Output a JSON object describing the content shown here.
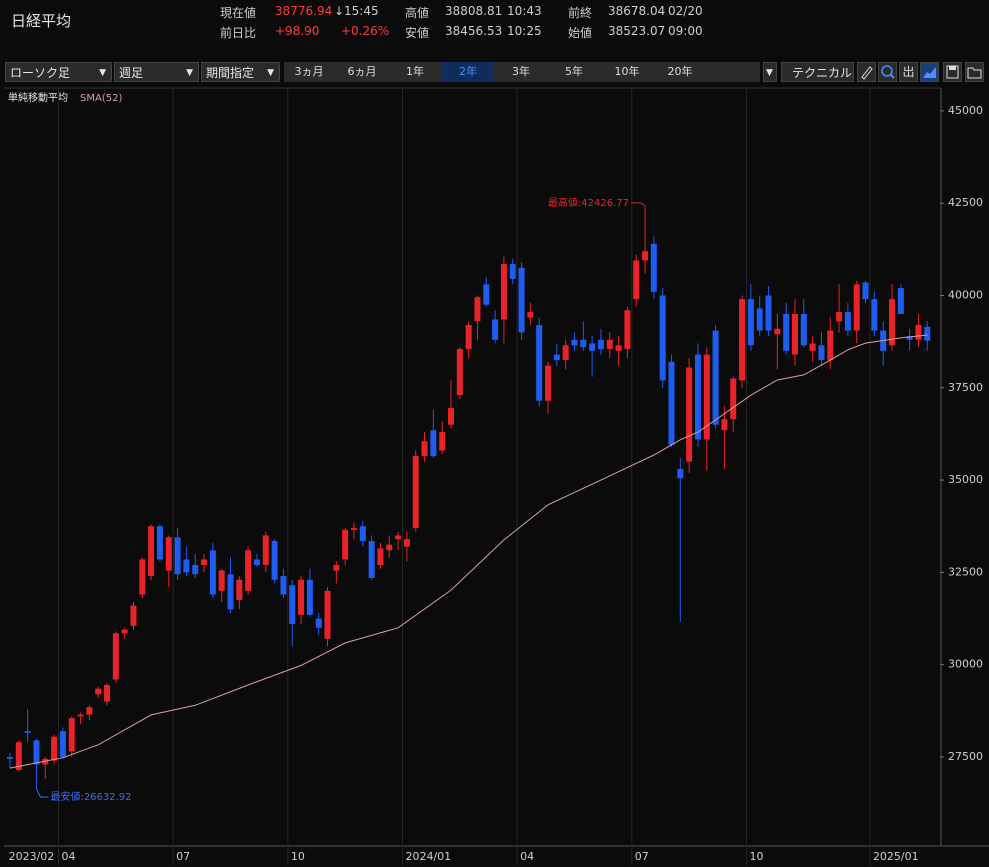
{
  "header": {
    "title": "日経平均",
    "cells": [
      "現在値",
      "38776.94",
      "↓",
      "15:45",
      "高値",
      "38808.81",
      "10:43",
      "前終",
      "38678.04",
      "02/20",
      "前日比",
      "+98.90",
      "+0.26%",
      "安値",
      "38456.53",
      "10:25",
      "始値",
      "38523.07",
      "09:00"
    ]
  },
  "toolbar": {
    "dropdowns": [
      "ローソク足",
      "週足",
      "期間指定"
    ],
    "periods": [
      "3ヵ月",
      "6ヵ月",
      "1年",
      "2年",
      "3年",
      "5年",
      "10年",
      "20年"
    ],
    "selected_period": "2年",
    "technical": "テクニカル",
    "icon_label": "出"
  },
  "chart_data": {
    "type": "candlestick",
    "indicator_label": "単純移動平均",
    "up_color": "#e8232a",
    "down_color": "#1f5cf0",
    "categories": [
      "2023/02",
      null,
      null,
      null,
      null,
      null,
      "04",
      null,
      null,
      null,
      null,
      null,
      null,
      null,
      null,
      null,
      null,
      null,
      null,
      "07",
      null,
      null,
      null,
      null,
      null,
      null,
      null,
      null,
      null,
      null,
      null,
      null,
      "10",
      null,
      null,
      null,
      null,
      null,
      null,
      null,
      null,
      null,
      null,
      null,
      null,
      "2024/01",
      null,
      null,
      null,
      null,
      null,
      null,
      null,
      null,
      null,
      null,
      null,
      null,
      "04",
      null,
      null,
      null,
      null,
      null,
      null,
      null,
      null,
      null,
      null,
      null,
      null,
      "07",
      null,
      null,
      null,
      null,
      null,
      null,
      null,
      null,
      null,
      null,
      null,
      null,
      "10",
      null,
      null,
      null,
      null,
      null,
      null,
      null,
      null,
      null,
      null,
      null,
      null,
      null,
      "2025/01",
      null,
      null,
      null,
      null,
      null,
      null
    ],
    "open": [
      27500,
      27150,
      28200,
      27950,
      27300,
      27400,
      28200,
      27650,
      28600,
      28650,
      29200,
      29000,
      29600,
      30850,
      31050,
      31900,
      32400,
      33750,
      32550,
      33450,
      32850,
      32700,
      32700,
      33100,
      32000,
      32450,
      31750,
      32000,
      32850,
      32700,
      33350,
      32400,
      32150,
      31350,
      32300,
      31250,
      30700,
      32550,
      32850,
      33650,
      33750,
      33350,
      32700,
      33100,
      33400,
      33200,
      33700,
      35650,
      36350,
      35800,
      36500,
      37300,
      38550,
      39300,
      40300,
      39350,
      39350,
      40850,
      40750,
      39400,
      39200,
      37150,
      38400,
      38250,
      38800,
      38800,
      38700,
      38800,
      38550,
      38500,
      38550,
      39900,
      40950,
      41400,
      40000,
      38200,
      35300,
      35500,
      38400,
      36100,
      39050,
      36350,
      36650,
      37700,
      39900,
      39650,
      40000,
      38950,
      39500,
      38400,
      39500,
      38500,
      38650,
      38250,
      39300,
      39550,
      39050,
      40350,
      39900,
      39050,
      38650,
      40200,
      38900,
      38800,
      39150
    ],
    "high": [
      27600,
      27950,
      28800,
      28000,
      27500,
      28100,
      28300,
      28600,
      28700,
      28900,
      29400,
      29500,
      30900,
      31000,
      31700,
      32900,
      33800,
      33800,
      33500,
      33700,
      33200,
      33000,
      33000,
      33300,
      32600,
      32900,
      32400,
      33200,
      33000,
      33600,
      33400,
      32600,
      32300,
      32400,
      32600,
      31400,
      32100,
      32800,
      33700,
      33850,
      33900,
      33500,
      33300,
      33500,
      33600,
      33600,
      35800,
      36300,
      36900,
      36600,
      37700,
      38600,
      39300,
      40000,
      40500,
      39600,
      41050,
      41000,
      40900,
      39800,
      39400,
      38200,
      38700,
      38800,
      39000,
      39300,
      38900,
      39100,
      39000,
      38900,
      39700,
      41100,
      42426.77,
      41600,
      40200,
      38400,
      35600,
      38300,
      38700,
      38600,
      39200,
      37000,
      37800,
      40000,
      40300,
      40000,
      40250,
      39500,
      39800,
      39900,
      39900,
      38900,
      39000,
      39400,
      40300,
      39800,
      40400,
      40400,
      40100,
      39300,
      40300,
      40300,
      39100,
      39500,
      39300
    ],
    "low": [
      27200,
      27100,
      27900,
      26632.92,
      26900,
      27300,
      27450,
      27500,
      28400,
      28500,
      29100,
      28900,
      29500,
      30700,
      30950,
      31800,
      32300,
      32800,
      32100,
      32300,
      32400,
      32350,
      32500,
      31800,
      31700,
      31400,
      31500,
      31900,
      32650,
      32500,
      32200,
      31800,
      30500,
      31100,
      31300,
      30800,
      30500,
      32200,
      32700,
      33400,
      33200,
      32300,
      32600,
      32900,
      33100,
      32800,
      33600,
      35500,
      35600,
      35700,
      36400,
      37200,
      38300,
      38800,
      39700,
      38700,
      38700,
      40300,
      38800,
      39200,
      37000,
      36800,
      38100,
      38000,
      38500,
      38500,
      37800,
      38400,
      38300,
      38100,
      38300,
      39700,
      40600,
      39900,
      37500,
      35900,
      31156,
      35200,
      35900,
      35250,
      36400,
      35300,
      36300,
      37500,
      38500,
      38900,
      38900,
      38000,
      38400,
      38100,
      38600,
      38200,
      38100,
      38000,
      39000,
      38900,
      38700,
      39800,
      38900,
      38100,
      38500,
      39500,
      38500,
      38600,
      38500
    ],
    "close": [
      27450,
      27900,
      28150,
      27300,
      27450,
      28050,
      27500,
      28550,
      28650,
      28850,
      29350,
      29450,
      30850,
      30950,
      31600,
      32850,
      33750,
      32850,
      33450,
      32450,
      32500,
      32450,
      32850,
      31900,
      32550,
      31500,
      32300,
      33100,
      32700,
      33500,
      32300,
      31900,
      31100,
      32300,
      31350,
      31000,
      32000,
      32700,
      33650,
      33700,
      33350,
      32350,
      33150,
      33250,
      33500,
      33400,
      35650,
      36050,
      35650,
      36300,
      36950,
      38550,
      39200,
      39950,
      39750,
      38800,
      40850,
      40450,
      39000,
      39550,
      37150,
      38100,
      38250,
      38650,
      38650,
      38600,
      38500,
      38550,
      38800,
      38650,
      39600,
      40950,
      41200,
      40100,
      37700,
      35950,
      35050,
      38050,
      36100,
      38400,
      36500,
      36650,
      37750,
      39900,
      38650,
      39050,
      39050,
      39100,
      38500,
      39500,
      38650,
      38700,
      38250,
      39050,
      39550,
      39050,
      40300,
      39900,
      39050,
      38500,
      39900,
      39500,
      38800,
      39200,
      38776.94
    ],
    "sma": {
      "name": "SMA(52)",
      "color": "#d9a0a0",
      "x": [
        0,
        6,
        10,
        16,
        21,
        27,
        33,
        38,
        44,
        50,
        56,
        61,
        67,
        73,
        76,
        78,
        80,
        84,
        87,
        90,
        93,
        95,
        97,
        101,
        104
      ],
      "values": [
        27200,
        27480,
        27830,
        28640,
        28900,
        29450,
        29980,
        30590,
        31000,
        32020,
        33380,
        34330,
        35000,
        35680,
        36090,
        36300,
        36630,
        37300,
        37710,
        37850,
        38250,
        38530,
        38710,
        38850,
        38930
      ]
    },
    "annotations": [
      {
        "text": "最高値:42426.77",
        "color": "#e8232a"
      },
      {
        "text": "最安値:26632.92",
        "color": "#3a6dff"
      }
    ],
    "ylim": [
      25100,
      45430
    ],
    "yticks": [
      27500,
      30000,
      32500,
      35000,
      37500,
      40000,
      42500,
      45000
    ],
    "grid": "x"
  }
}
